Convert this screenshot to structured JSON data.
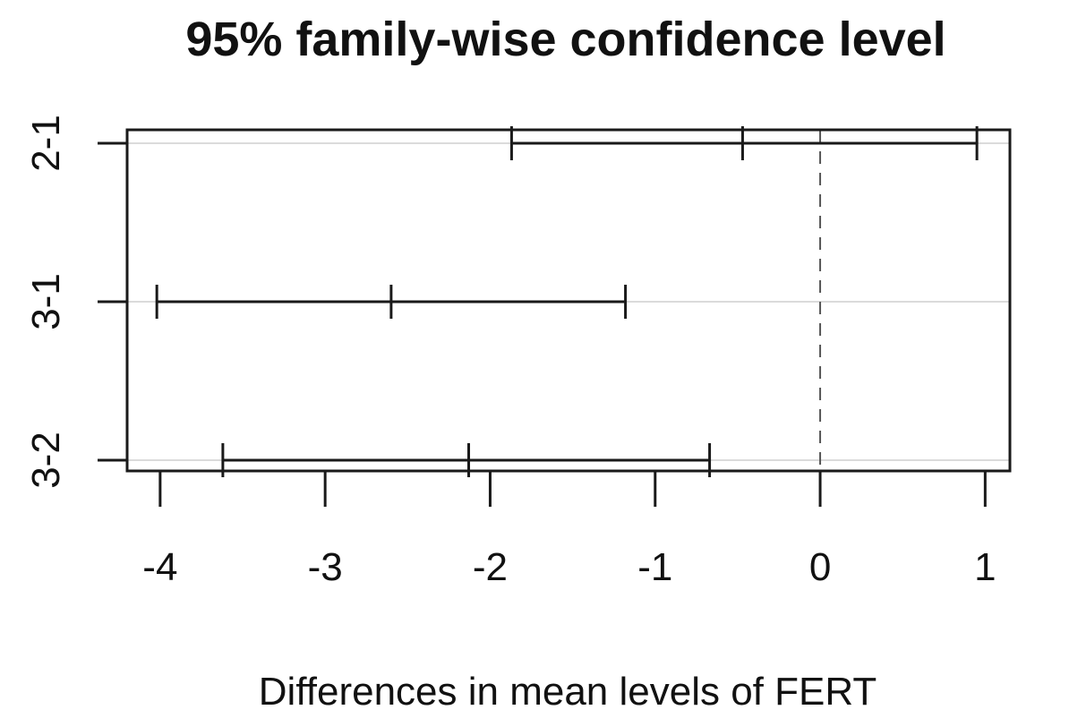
{
  "chart_data": {
    "type": "interval",
    "title": "95% family-wise confidence level",
    "xlabel": "Differences in mean levels of FERT",
    "ylabel": "",
    "xlim": [
      -4.2,
      1.15
    ],
    "xticks": [
      -4,
      -3,
      -2,
      -1,
      0,
      1
    ],
    "xtick_labels": [
      "-4",
      "-3",
      "-2",
      "-1",
      "0",
      "1"
    ],
    "reference_line": 0,
    "grid": false,
    "comparisons": [
      {
        "label": "2-1",
        "lwr": -1.87,
        "diff": -0.47,
        "upr": 0.95
      },
      {
        "label": "3-1",
        "lwr": -4.02,
        "diff": -2.6,
        "upr": -1.18
      },
      {
        "label": "3-2",
        "lwr": -3.62,
        "diff": -2.13,
        "upr": -0.67
      }
    ],
    "colors": {
      "intervals": "#1a1a1a",
      "frame": "#1a1a1a",
      "reference": "#555555",
      "row_guides": "#cfcfcf"
    }
  }
}
